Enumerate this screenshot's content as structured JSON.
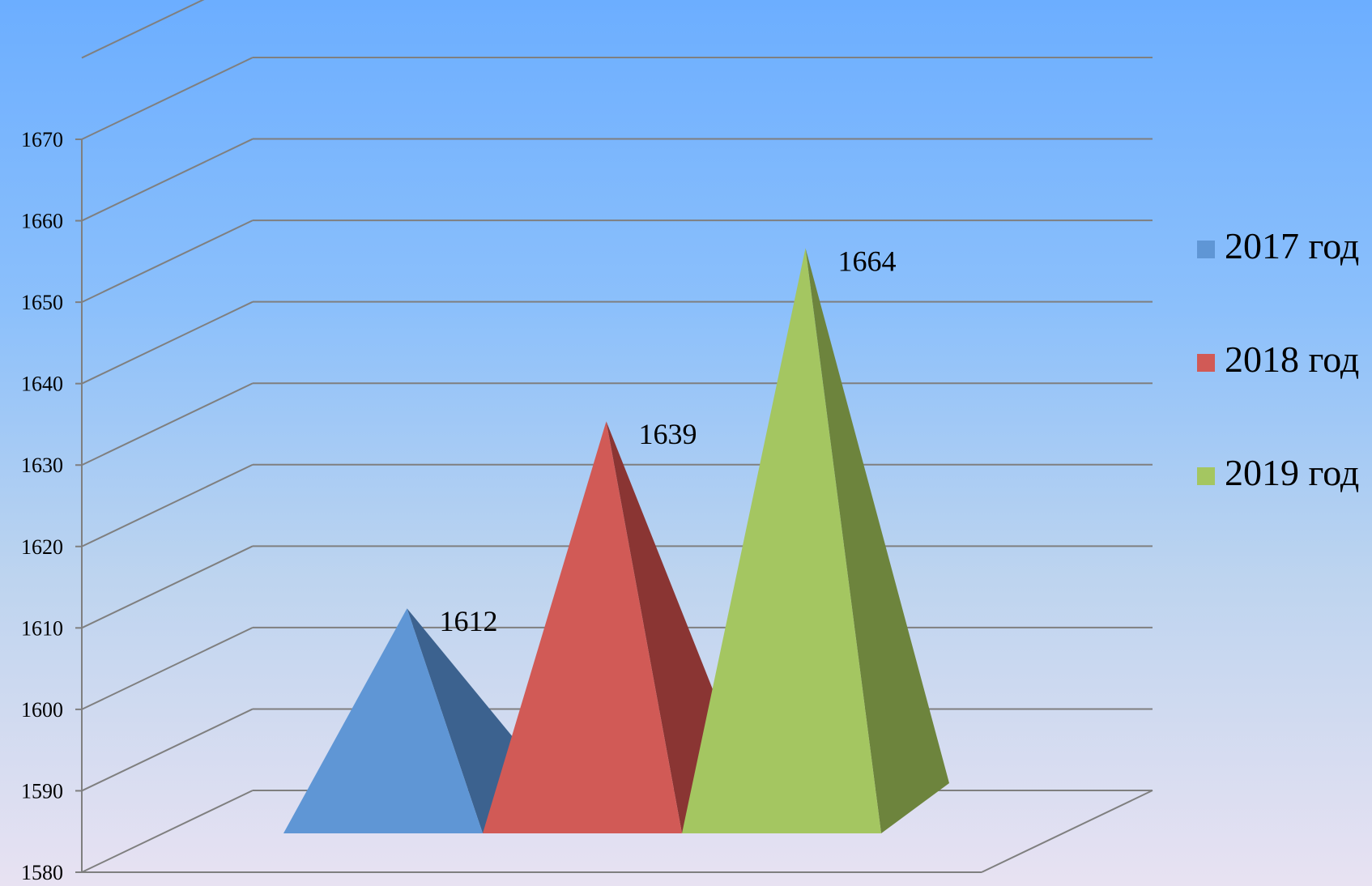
{
  "chart_data": {
    "type": "bar",
    "shape": "3d-pyramid",
    "title": "",
    "xlabel": "",
    "ylabel": "",
    "ylim": [
      1580,
      1670
    ],
    "yticks": [
      "1580",
      "1590",
      "1600",
      "1610",
      "1620",
      "1630",
      "1640",
      "1650",
      "1660",
      "1670"
    ],
    "grid": true,
    "legend_position": "right",
    "series": [
      {
        "name": "2017 год",
        "value": 1612,
        "label": "1612",
        "color": "#5f96d5",
        "shade": "#3c628f"
      },
      {
        "name": "2018 год",
        "value": 1639,
        "label": "1639",
        "color": "#d15a56",
        "shade": "#8a3533"
      },
      {
        "name": "2019 год",
        "value": 1664,
        "label": "1664",
        "color": "#a4c661",
        "shade": "#6d843d"
      }
    ]
  }
}
